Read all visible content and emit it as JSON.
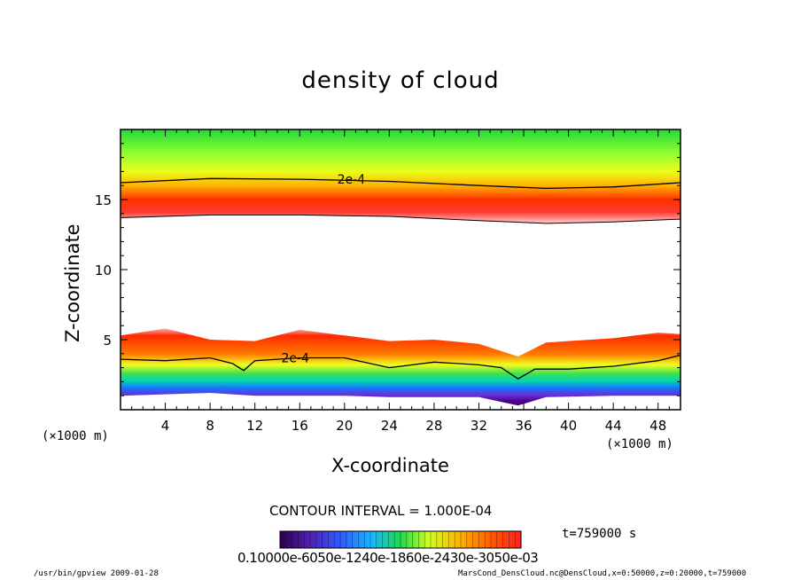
{
  "chart_data": {
    "type": "heatmap",
    "title": "density of cloud",
    "xlabel": "X-coordinate",
    "ylabel": "Z-coordinate",
    "x_unit": "(×1000 m)",
    "x_unit_right": "(×1000 m)",
    "xlim": [
      0,
      50
    ],
    "ylim": [
      0,
      20
    ],
    "x_ticks": [
      4,
      8,
      12,
      16,
      20,
      24,
      28,
      32,
      36,
      40,
      44,
      48
    ],
    "y_ticks": [
      5,
      10,
      15
    ],
    "contour_labels": [
      "2e-4",
      "2e-4"
    ],
    "contour_interval_text": "CONTOUR INTERVAL = 1.000E-04",
    "time_text": "t=759000 s",
    "colorbar_labels": "0.10000e-6050e-1240e-1860e-2430e-3050e-03",
    "upper_layer": {
      "contour_2e4_z": [
        [
          0,
          16.2
        ],
        [
          8,
          16.5
        ],
        [
          16,
          16.45
        ],
        [
          24,
          16.3
        ],
        [
          32,
          16.0
        ],
        [
          38,
          15.8
        ],
        [
          44,
          15.9
        ],
        [
          50,
          16.2
        ]
      ],
      "base_z": [
        [
          0,
          13.7
        ],
        [
          8,
          13.9
        ],
        [
          16,
          13.9
        ],
        [
          24,
          13.8
        ],
        [
          32,
          13.5
        ],
        [
          38,
          13.3
        ],
        [
          44,
          13.4
        ],
        [
          50,
          13.6
        ]
      ]
    },
    "lower_layer": {
      "top_z": [
        [
          0,
          5.3
        ],
        [
          4,
          5.8
        ],
        [
          8,
          5.0
        ],
        [
          12,
          4.9
        ],
        [
          16,
          5.7
        ],
        [
          20,
          5.3
        ],
        [
          24,
          4.9
        ],
        [
          28,
          5.0
        ],
        [
          32,
          4.7
        ],
        [
          35.5,
          3.8
        ],
        [
          38,
          4.8
        ],
        [
          44,
          5.1
        ],
        [
          48,
          5.5
        ],
        [
          50,
          5.4
        ]
      ],
      "contour_2e4_z": [
        [
          0,
          3.6
        ],
        [
          4,
          3.5
        ],
        [
          8,
          3.7
        ],
        [
          10,
          3.3
        ],
        [
          11,
          2.8
        ],
        [
          12,
          3.5
        ],
        [
          16,
          3.7
        ],
        [
          20,
          3.7
        ],
        [
          24,
          3.0
        ],
        [
          28,
          3.4
        ],
        [
          32,
          3.2
        ],
        [
          34,
          3.0
        ],
        [
          35.5,
          2.2
        ],
        [
          37,
          2.9
        ],
        [
          40,
          2.9
        ],
        [
          44,
          3.1
        ],
        [
          48,
          3.5
        ],
        [
          50,
          3.9
        ]
      ],
      "bottom_z": [
        [
          0,
          1.0
        ],
        [
          4,
          1.1
        ],
        [
          8,
          1.2
        ],
        [
          12,
          1.0
        ],
        [
          16,
          1.0
        ],
        [
          20,
          1.0
        ],
        [
          24,
          0.9
        ],
        [
          28,
          0.9
        ],
        [
          32,
          0.9
        ],
        [
          35.5,
          0.3
        ],
        [
          38,
          0.9
        ],
        [
          44,
          1.0
        ],
        [
          50,
          1.0
        ]
      ]
    }
  },
  "footer": {
    "left": "/usr/bin/gpview  2009-01-28",
    "right": "MarsCond_DensCloud.nc@DensCloud,x=0:50000,z=0:20000,t=759000"
  },
  "colors": {
    "background": "#ffffff",
    "ramp": [
      "#4b0082",
      "#6a2cd6",
      "#2f5bff",
      "#19b6ff",
      "#00d9b0",
      "#20d94a",
      "#7cff3c",
      "#e8ff1a",
      "#ffb000",
      "#ff6a00",
      "#ff2a00"
    ]
  }
}
